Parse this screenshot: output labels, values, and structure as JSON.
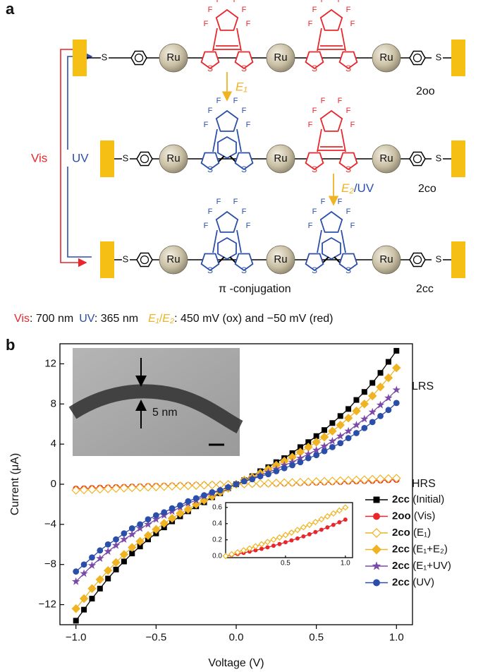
{
  "panel_labels": [
    "a",
    "b"
  ],
  "panel_a": {
    "atoms": {
      "ru": "Ru",
      "s": "S",
      "f": "F"
    },
    "switch": {
      "vis": "Vis",
      "uv": "UV"
    },
    "steps": {
      "e1": "E₁",
      "e2": "E₂",
      "e2_uv": "/UV"
    },
    "rows": [
      "2oo",
      "2co",
      "2cc"
    ],
    "conjugation": "π -conjugation",
    "conditions": {
      "vis": "Vis",
      "vis_value": ": 700 nm",
      "uv": "UV",
      "uv_value": ": 365 nm",
      "e1": "E₁",
      "slash": "/",
      "e2": "E₂",
      "e_value": ": 450 mV (ox) and −50 mV (red)"
    }
  },
  "chart_data": [
    {
      "type": "line",
      "xlabel": "Voltage (V)",
      "ylabel": "Current (μA)",
      "xlim": [
        -1.1,
        1.1
      ],
      "ylim": [
        -14,
        14
      ],
      "xticks": [
        {
          "value": -1,
          "label": "−1.0"
        },
        {
          "value": -0.5,
          "label": "−0.5"
        },
        {
          "value": 0,
          "label": "0.0"
        },
        0.5,
        {
          "value": 1,
          "label": "1.0"
        }
      ],
      "yticks": [
        {
          "value": -12,
          "label": "−12"
        },
        {
          "value": -8,
          "label": "−8"
        },
        {
          "value": -4,
          "label": "−4"
        },
        0,
        4,
        8,
        12
      ],
      "annotations": [
        "LRS",
        "HRS",
        "5 nm"
      ],
      "x": [
        -1,
        -0.95,
        -0.9,
        -0.85,
        -0.8,
        -0.75,
        -0.7,
        -0.65,
        -0.6,
        -0.55,
        -0.5,
        -0.45,
        -0.4,
        -0.35,
        -0.3,
        -0.25,
        -0.2,
        -0.15,
        -0.1,
        -0.05,
        0,
        0.05,
        0.1,
        0.15,
        0.2,
        0.25,
        0.3,
        0.35,
        0.4,
        0.45,
        0.5,
        0.55,
        0.6,
        0.65,
        0.7,
        0.75,
        0.8,
        0.85,
        0.9,
        0.95,
        1
      ],
      "series": [
        {
          "name": "2cc (Initial)",
          "color": "#000000",
          "marker": "square",
          "values": [
            -13.6,
            -12.5,
            -11.4,
            -10.4,
            -9.4,
            -8.5,
            -7.7,
            -6.9,
            -6.2,
            -5.5,
            -4.9,
            -4.3,
            -3.7,
            -3.2,
            -2.7,
            -2.2,
            -1.8,
            -1.3,
            -0.9,
            -0.4,
            0,
            0.4,
            0.8,
            1.3,
            1.7,
            2.2,
            2.6,
            3.1,
            3.7,
            4.2,
            4.8,
            5.4,
            6.1,
            6.8,
            7.5,
            8.4,
            9.2,
            10.1,
            11.1,
            12.2,
            13.3
          ]
        },
        {
          "name": "2oo (Vis)",
          "color": "#e8262b",
          "marker": "circle",
          "values": [
            -0.45,
            -0.42,
            -0.39,
            -0.35,
            -0.33,
            -0.3,
            -0.27,
            -0.24,
            -0.22,
            -0.19,
            -0.17,
            -0.15,
            -0.13,
            -0.11,
            -0.09,
            -0.07,
            -0.06,
            -0.04,
            -0.03,
            -0.01,
            0,
            0.01,
            0.03,
            0.04,
            0.06,
            0.07,
            0.09,
            0.11,
            0.13,
            0.15,
            0.17,
            0.19,
            0.22,
            0.24,
            0.27,
            0.3,
            0.33,
            0.35,
            0.39,
            0.42,
            0.45
          ]
        },
        {
          "name": "2co (E₁)",
          "color": "#f0b323",
          "marker": "open-diamond",
          "values": [
            -0.6,
            -0.56,
            -0.53,
            -0.49,
            -0.45,
            -0.42,
            -0.39,
            -0.35,
            -0.32,
            -0.29,
            -0.26,
            -0.23,
            -0.2,
            -0.17,
            -0.15,
            -0.12,
            -0.09,
            -0.07,
            -0.05,
            -0.02,
            0,
            0.02,
            0.05,
            0.07,
            0.09,
            0.12,
            0.15,
            0.17,
            0.2,
            0.23,
            0.26,
            0.29,
            0.32,
            0.35,
            0.39,
            0.42,
            0.45,
            0.49,
            0.53,
            0.56,
            0.6
          ]
        },
        {
          "name": "2cc (E₁+E₂)",
          "color": "#f0b323",
          "marker": "diamond",
          "values": [
            -12.4,
            -11.4,
            -10.4,
            -9.5,
            -8.6,
            -7.8,
            -7.0,
            -6.3,
            -5.7,
            -5.1,
            -4.5,
            -3.9,
            -3.4,
            -2.9,
            -2.5,
            -2.0,
            -1.6,
            -1.2,
            -0.8,
            -0.4,
            0,
            0.4,
            0.7,
            1.1,
            1.5,
            1.9,
            2.3,
            2.7,
            3.2,
            3.7,
            4.2,
            4.7,
            5.3,
            5.9,
            6.6,
            7.3,
            8.0,
            8.8,
            9.7,
            10.6,
            11.6
          ]
        },
        {
          "name": "2cc (E₁+UV)",
          "color": "#7a4aa8",
          "marker": "star",
          "values": [
            -9.7,
            -8.9,
            -8.1,
            -7.4,
            -6.7,
            -6.1,
            -5.5,
            -5.0,
            -4.4,
            -4.0,
            -3.5,
            -3.1,
            -2.7,
            -2.3,
            -1.9,
            -1.6,
            -1.2,
            -0.9,
            -0.6,
            -0.3,
            0,
            0.3,
            0.6,
            0.9,
            1.2,
            1.5,
            1.9,
            2.2,
            2.6,
            3.0,
            3.4,
            3.8,
            4.3,
            4.8,
            5.3,
            5.9,
            6.5,
            7.2,
            7.9,
            8.6,
            9.4
          ]
        },
        {
          "name": "2cc (UV)",
          "color": "#2b4fa8",
          "marker": "circle",
          "values": [
            -8.7,
            -8.0,
            -7.3,
            -6.6,
            -6.0,
            -5.5,
            -4.9,
            -4.4,
            -4.0,
            -3.5,
            -3.1,
            -2.8,
            -2.4,
            -2.1,
            -1.7,
            -1.4,
            -1.1,
            -0.8,
            -0.6,
            -0.3,
            0,
            0.3,
            0.5,
            0.8,
            1.0,
            1.3,
            1.6,
            1.9,
            2.2,
            2.6,
            2.9,
            3.3,
            3.7,
            4.1,
            4.6,
            5.1,
            5.6,
            6.2,
            6.8,
            7.4,
            8.1
          ]
        }
      ]
    },
    {
      "type": "line",
      "xlim": [
        0,
        1.06
      ],
      "ylim": [
        -0.02,
        0.66
      ],
      "xticks": [
        0.5,
        {
          "value": 1,
          "label": "1.0"
        }
      ],
      "yticks": [
        {
          "value": 0,
          "label": "0.0"
        },
        0.2,
        0.4,
        0.6
      ],
      "x": [
        0,
        0.05,
        0.1,
        0.15,
        0.2,
        0.25,
        0.3,
        0.35,
        0.4,
        0.45,
        0.5,
        0.55,
        0.6,
        0.65,
        0.7,
        0.75,
        0.8,
        0.85,
        0.9,
        0.95,
        1
      ],
      "series": [
        {
          "color": "#e8262b",
          "marker": "circle",
          "values": [
            0,
            0.012,
            0.025,
            0.039,
            0.055,
            0.071,
            0.089,
            0.107,
            0.127,
            0.148,
            0.17,
            0.193,
            0.217,
            0.242,
            0.269,
            0.296,
            0.325,
            0.354,
            0.385,
            0.417,
            0.45
          ]
        },
        {
          "color": "#f0b323",
          "marker": "open-diamond",
          "values": [
            0,
            0.022,
            0.046,
            0.07,
            0.094,
            0.12,
            0.146,
            0.174,
            0.202,
            0.23,
            0.26,
            0.29,
            0.322,
            0.354,
            0.386,
            0.42,
            0.454,
            0.49,
            0.526,
            0.562,
            0.6
          ]
        }
      ]
    }
  ]
}
